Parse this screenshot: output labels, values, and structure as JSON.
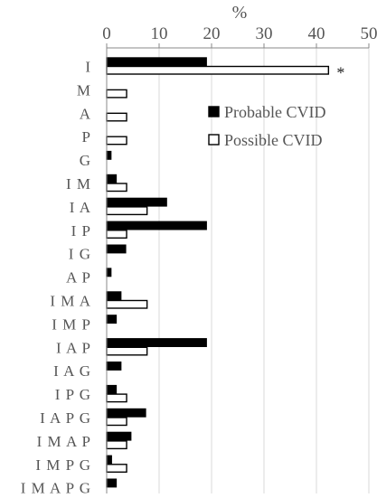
{
  "chart_data": {
    "type": "bar",
    "orientation": "horizontal",
    "title": "",
    "unit_label": "%",
    "xlabel": "%",
    "ylabel": "",
    "xlim": [
      0,
      50
    ],
    "x_ticks": [
      0,
      10,
      20,
      30,
      40,
      50
    ],
    "x_tick_labels": [
      "0",
      "10",
      "20",
      "30",
      "40",
      "50"
    ],
    "axis_position": "top",
    "grid": true,
    "legend_position": "right",
    "categories": [
      "I",
      "M",
      "A",
      "P",
      "G",
      "I M",
      "I A",
      "I P",
      "I G",
      "A P",
      "I M A",
      "I M P",
      "I A P",
      "I A G",
      "I P G",
      "I A P G",
      "I M A P",
      "I M P G",
      "I M A P G"
    ],
    "series": [
      {
        "name": "Probable CVID",
        "fill": "#000000",
        "values": [
          19,
          0,
          0,
          0,
          0.8,
          1.8,
          11.4,
          19,
          3.6,
          0.8,
          2.7,
          1.8,
          19,
          2.7,
          1.8,
          7.4,
          4.6,
          0.9,
          1.8
        ]
      },
      {
        "name": "Possible CVID",
        "fill": "#ffffff",
        "values": [
          42.3,
          3.8,
          3.8,
          3.8,
          0,
          3.8,
          7.7,
          3.8,
          0,
          0,
          7.7,
          0,
          7.7,
          0,
          3.8,
          3.8,
          3.8,
          3.8,
          0
        ]
      }
    ],
    "annotations": [
      {
        "text": "*",
        "category": "I",
        "series": "Possible CVID"
      }
    ]
  }
}
